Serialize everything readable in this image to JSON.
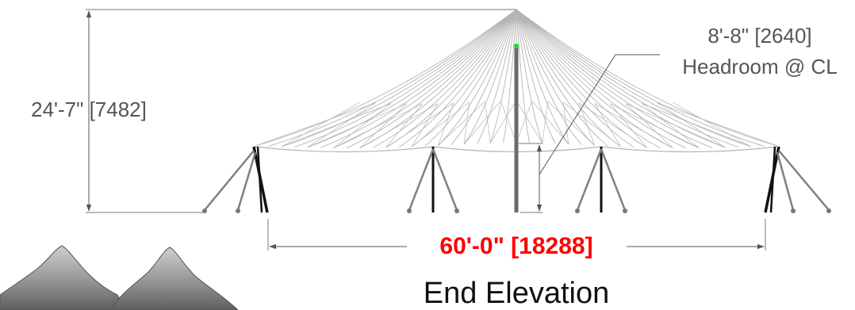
{
  "dimensions": {
    "height_label": "24'-7\" [7482]",
    "headroom_value": "8'-8\" [2640]",
    "headroom_label": "Headroom @ CL",
    "width_label": "60'-0\" [18288]"
  },
  "view_title": "End Elevation",
  "colors": {
    "membrane": "#b4b4b4",
    "pole": "#6a6a6a",
    "leg_dark": "#111111",
    "leg_gray": "#808080",
    "dimension_line": "#555555",
    "label_text": "#555555",
    "width_label": "#ff0000",
    "peak_marker": "#22dd22",
    "thumbnail": "#8a8a8a"
  }
}
